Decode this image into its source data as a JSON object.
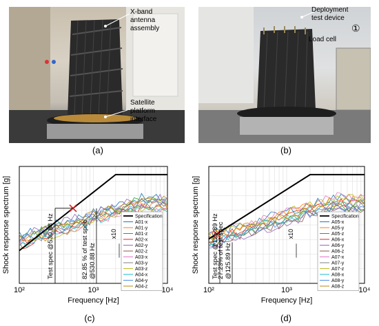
{
  "captions": {
    "a": "(a)",
    "b": "(b)",
    "c": "(c)",
    "d": "(d)"
  },
  "photo_a": {
    "labels": {
      "antenna": "X-band antenna assembly",
      "interface": "Satellite platform interface"
    }
  },
  "photo_b": {
    "labels": {
      "deploy": "Deployment test device",
      "load": "Load cell",
      "marker": "①"
    }
  },
  "chart_data": [
    {
      "type": "line",
      "xlabel": "Frequency [Hz]",
      "ylabel": "Shock response spectrum [g]",
      "xscale": "log",
      "xlim": [
        100,
        10000
      ],
      "xticks": [
        "10²",
        "10³",
        "10⁴"
      ],
      "grid": true,
      "legend_position": "right",
      "scale_note": "x10",
      "specification": {
        "name": "Specification",
        "points": [
          [
            100,
            0.28
          ],
          [
            2000,
            0.93
          ],
          [
            10000,
            0.93
          ]
        ]
      },
      "marker": {
        "x": 530.88
      },
      "annotations": [
        "Test spec @530.88 Hz",
        "82.85 % of test spec @530.88 Hz"
      ],
      "series": [
        {
          "name": "A01-x"
        },
        {
          "name": "A01-y"
        },
        {
          "name": "A01-z"
        },
        {
          "name": "A02-x"
        },
        {
          "name": "A02-y"
        },
        {
          "name": "A02-z"
        },
        {
          "name": "A03-x"
        },
        {
          "name": "A03-y"
        },
        {
          "name": "A03-z"
        },
        {
          "name": "A04-x"
        },
        {
          "name": "A04-y"
        },
        {
          "name": "A04-z"
        }
      ]
    },
    {
      "type": "line",
      "xlabel": "Frequency [Hz]",
      "ylabel": "Shock response spectrum [g]",
      "xscale": "log",
      "xlim": [
        100,
        10000
      ],
      "xticks": [
        "10²",
        "10³",
        "10⁴"
      ],
      "grid": true,
      "legend_position": "right",
      "scale_note": "x10",
      "specification": {
        "name": "Specification",
        "points": [
          [
            100,
            0.38
          ],
          [
            2000,
            0.93
          ],
          [
            10000,
            0.93
          ]
        ]
      },
      "marker": {
        "x": 125.89
      },
      "annotations": [
        "Test spec @125.89 Hz",
        "27.23% of test spec @125.89 Hz"
      ],
      "series": [
        {
          "name": "A05-x"
        },
        {
          "name": "A05-y"
        },
        {
          "name": "A05-z"
        },
        {
          "name": "A06-x"
        },
        {
          "name": "A06-y"
        },
        {
          "name": "A06-z"
        },
        {
          "name": "A07-x"
        },
        {
          "name": "A07-y"
        },
        {
          "name": "A07-z"
        },
        {
          "name": "A08-x"
        },
        {
          "name": "A08-y"
        },
        {
          "name": "A08-z"
        }
      ]
    }
  ],
  "colors": {
    "series": [
      "#1f77b4",
      "#ff7f0e",
      "#2ca02c",
      "#d62728",
      "#9467bd",
      "#8c564b",
      "#e377c2",
      "#7f7f7f",
      "#bcbd22",
      "#17becf",
      "#4a90e2",
      "#b8860b"
    ],
    "marker": "#e02020"
  }
}
